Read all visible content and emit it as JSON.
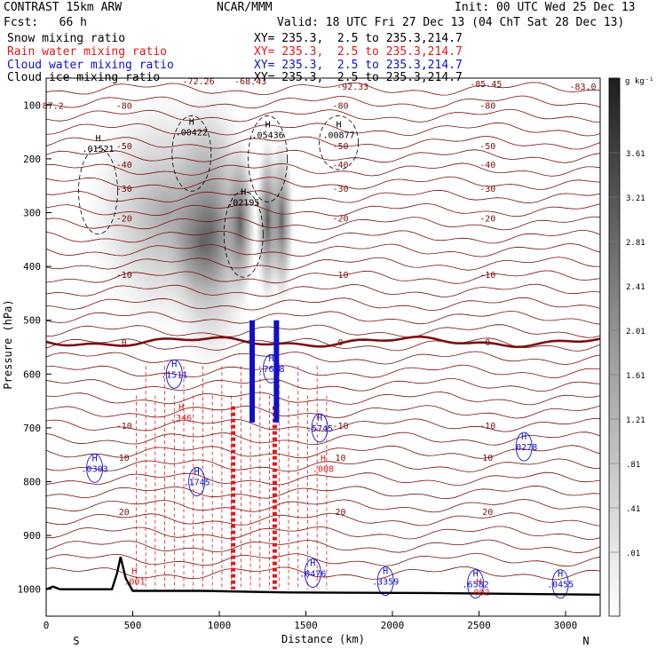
{
  "header": {
    "model": "CONTRAST 15km ARW",
    "org": "NCAR/MMM",
    "init": "Init: 00 UTC Wed 25 Dec 13",
    "fcst": "Fcst:   66 h",
    "valid": "Valid: 18 UTC Fri 27 Dec 13 (04 ChT Sat 28 Dec 13)"
  },
  "fields": [
    {
      "name": "Snow mixing ratio",
      "xy": "XY= 235.3,  2.5 to 235.3,214.7",
      "color": "#000000"
    },
    {
      "name": "Rain water mixing ratio",
      "xy": "XY= 235.3,  2.5 to 235.3,214.7",
      "color": "#e0191c"
    },
    {
      "name": "Cloud water mixing ratio",
      "xy": "XY= 235.3,  2.5 to 235.3,214.7",
      "color": "#1010c8"
    },
    {
      "name": "Cloud ice mixing ratio",
      "xy": "XY= 235.3,  2.5 to 235.3,214.7",
      "color": "#000000"
    }
  ],
  "colorbar": {
    "unit": "g kg⁻¹",
    "levels": [
      "3.61",
      "3.21",
      "2.81",
      "2.41",
      "2.01",
      "1.61",
      "1.21",
      ".81",
      ".41",
      ".01"
    ]
  },
  "chart_data": {
    "type": "cross-section",
    "xlabel": "Distance (km)",
    "ylabel": "Pressure (hPa)",
    "xlim": [
      0,
      3200
    ],
    "ylim": [
      1050,
      50
    ],
    "xticks": [
      0,
      500,
      1000,
      1500,
      2000,
      2500,
      3000
    ],
    "yticks": [
      100,
      200,
      300,
      400,
      500,
      600,
      700,
      800,
      900,
      1000
    ],
    "x_end_labels": {
      "left": "S",
      "right": "N"
    },
    "snow_shading_max_km": [
      900,
      1120,
      1280,
      1360
    ],
    "isotherms_C": [
      {
        "label": "-80",
        "p": 100
      },
      {
        "label": "-50",
        "p": 175
      },
      {
        "label": "-40",
        "p": 210
      },
      {
        "label": "-30",
        "p": 255
      },
      {
        "label": "-20",
        "p": 310
      },
      {
        "label": "-10",
        "p": 415
      },
      {
        "label": "0",
        "p": 540
      },
      {
        "label": "-10",
        "p": 695
      },
      {
        "label": "10",
        "p": 755
      },
      {
        "label": "20",
        "p": 855
      }
    ],
    "temperature_extrema": [
      {
        "label": "-72.26",
        "x": 880,
        "p": 55
      },
      {
        "label": "-68.43",
        "x": 1180,
        "p": 55
      },
      {
        "label": "-92.33",
        "x": 1770,
        "p": 65
      },
      {
        "label": "-85.45",
        "x": 2540,
        "p": 60
      },
      {
        "label": "-83.0",
        "x": 3100,
        "p": 65
      },
      {
        "label": "87.2",
        "x": 40,
        "p": 100
      }
    ],
    "maxima": [
      {
        "label": ".01521",
        "x": 300,
        "p": 180,
        "field": "ice"
      },
      {
        "label": ".00422",
        "x": 840,
        "p": 150,
        "field": "ice"
      },
      {
        "label": ".05436",
        "x": 1280,
        "p": 155,
        "field": "ice"
      },
      {
        "label": ".00877",
        "x": 1690,
        "p": 155,
        "field": "ice"
      },
      {
        "label": ".02195",
        "x": 1140,
        "p": 280,
        "field": "ice"
      },
      {
        "label": ".1511",
        "x": 740,
        "p": 600,
        "field": "cloud"
      },
      {
        "label": ".7698",
        "x": 1300,
        "p": 590,
        "field": "cloud"
      },
      {
        "label": ".5745",
        "x": 1580,
        "p": 700,
        "field": "cloud"
      },
      {
        "label": ".0303",
        "x": 280,
        "p": 775,
        "field": "cloud"
      },
      {
        "label": ".1745",
        "x": 870,
        "p": 800,
        "field": "cloud"
      },
      {
        "label": ".0278",
        "x": 2760,
        "p": 735,
        "field": "cloud"
      },
      {
        "label": ".0476",
        "x": 1540,
        "p": 970,
        "field": "cloud"
      },
      {
        "label": ".3359",
        "x": 1960,
        "p": 985,
        "field": "cloud"
      },
      {
        "label": ".6582",
        "x": 2480,
        "p": 990,
        "field": "cloud"
      },
      {
        "label": ".0455",
        "x": 2970,
        "p": 990,
        "field": "cloud"
      },
      {
        "label": ".346",
        "x": 780,
        "p": 680,
        "field": "rain"
      },
      {
        "label": ".008",
        "x": 1600,
        "p": 775,
        "field": "rain"
      },
      {
        "label": ".002",
        "x": 2500,
        "p": 1005,
        "field": "rain"
      },
      {
        "label": ".001",
        "x": 510,
        "p": 985,
        "field": "rain"
      }
    ],
    "terrain_note": "bold black ground line with peak near 430 km"
  }
}
